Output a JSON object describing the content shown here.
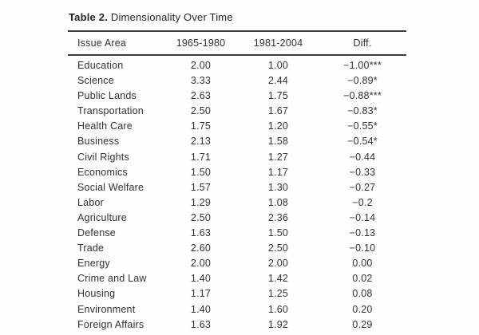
{
  "document": {
    "caption": {
      "label": "Table 2.",
      "title": "Dimensionality Over Time"
    },
    "table": {
      "headers": [
        "Issue Area",
        "1965-1980",
        "1981-2004",
        "Diff."
      ],
      "rows": [
        [
          "Education",
          "2.00",
          "1.00",
          "−1.00***"
        ],
        [
          "Science",
          "3.33",
          "2.44",
          "−0.89*"
        ],
        [
          "Public Lands",
          "2.63",
          "1.75",
          "−0.88***"
        ],
        [
          "Transportation",
          "2.50",
          "1.67",
          "−0.83*"
        ],
        [
          "Health Care",
          "1.75",
          "1.20",
          "−0.55*"
        ],
        [
          "Business",
          "2.13",
          "1.58",
          "−0.54*"
        ],
        [
          "Civil Rights",
          "1.71",
          "1.27",
          "−0.44"
        ],
        [
          "Economics",
          "1.50",
          "1.17",
          "−0.33"
        ],
        [
          "Social Welfare",
          "1.57",
          "1.30",
          "−0.27"
        ],
        [
          "Labor",
          "1.29",
          "1.08",
          "−0.2"
        ],
        [
          "Agriculture",
          "2.50",
          "2.36",
          "−0.14"
        ],
        [
          "Defense",
          "1.63",
          "1.50",
          "−0.13"
        ],
        [
          "Trade",
          "2.60",
          "2.50",
          "−0.10"
        ],
        [
          "Energy",
          "2.00",
          "2.00",
          "0.00"
        ],
        [
          "Crime and Law",
          "1.40",
          "1.42",
          "0.02"
        ],
        [
          "Housing",
          "1.17",
          "1.25",
          "0.08"
        ],
        [
          "Environment",
          "1.40",
          "1.60",
          "0.20"
        ],
        [
          "Foreign Affairs",
          "1.63",
          "1.92",
          "0.29"
        ]
      ]
    },
    "colors": {
      "text": "#2e2e2e",
      "rule": "#3c3c3c",
      "background": "#fefefe"
    }
  }
}
